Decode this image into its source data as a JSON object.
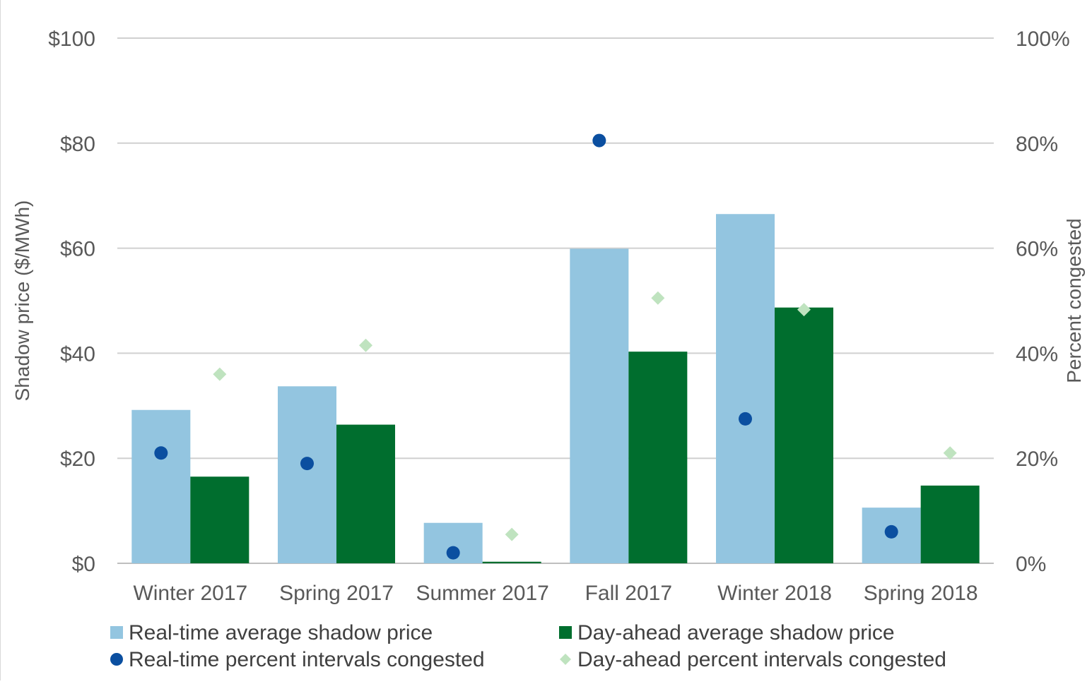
{
  "chart_data": {
    "type": "bar",
    "categories": [
      "Winter 2017",
      "Spring 2017",
      "Summer 2017",
      "Fall 2017",
      "Winter 2018",
      "Spring 2018"
    ],
    "series": [
      {
        "name": "Real-time average shadow price",
        "kind": "bar",
        "axis": "left",
        "color": "#93c5e0",
        "values": [
          29.2,
          33.7,
          7.7,
          59.9,
          66.5,
          10.6
        ]
      },
      {
        "name": "Day-ahead average shadow price",
        "kind": "bar",
        "axis": "left",
        "color": "#006e2e",
        "values": [
          16.5,
          26.4,
          0.3,
          40.3,
          48.7,
          14.8
        ]
      },
      {
        "name": "Real-time percent intervals congested",
        "kind": "scatter",
        "marker": "circle",
        "axis": "right",
        "color": "#0b4fa0",
        "values": [
          21,
          19,
          2,
          80.5,
          27.5,
          6
        ]
      },
      {
        "name": "Day-ahead percent intervals congested",
        "kind": "scatter",
        "marker": "diamond",
        "axis": "right",
        "color": "#bfe3bf",
        "values": [
          36,
          41.5,
          5.5,
          50.5,
          48.3,
          21
        ]
      }
    ],
    "ylabel": "Shadow price ($/MWh)",
    "y2label": "Percent congested",
    "ylim": [
      0,
      100
    ],
    "y2lim": [
      0,
      100
    ],
    "yticks": [
      "$0",
      "$20",
      "$40",
      "$60",
      "$80",
      "$100"
    ],
    "y2ticks": [
      "0%",
      "20%",
      "40%",
      "60%",
      "80%",
      "100%"
    ],
    "grid": true,
    "legend_position": "bottom"
  }
}
